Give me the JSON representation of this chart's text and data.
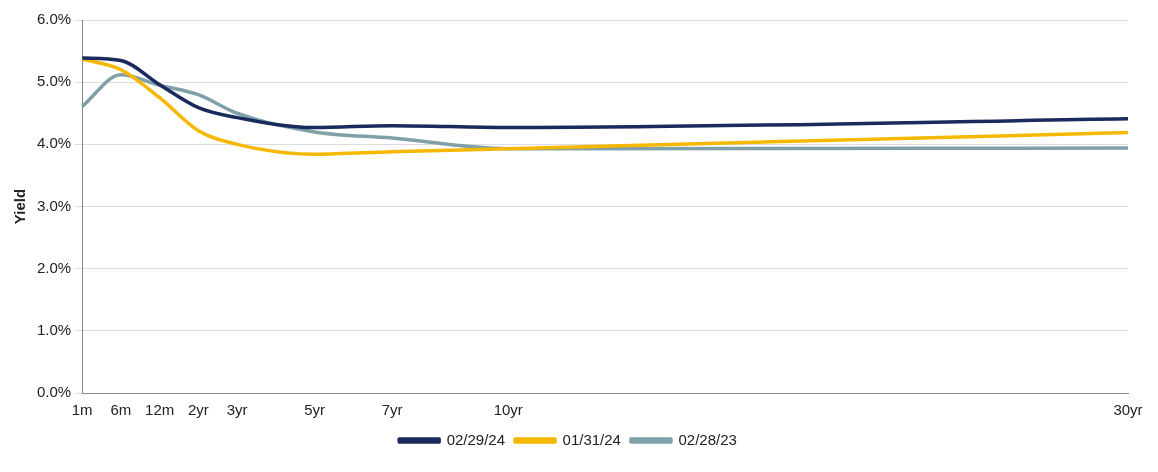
{
  "chart_data": {
    "type": "line",
    "ylabel": "Yield",
    "categories": [
      "1m",
      "6m",
      "12m",
      "2yr",
      "3yr",
      null,
      "5yr",
      null,
      "7yr",
      null,
      null,
      "10yr",
      null,
      null,
      null,
      null,
      null,
      null,
      null,
      null,
      null,
      null,
      null,
      null,
      null,
      null,
      null,
      "30yr"
    ],
    "ylim": [
      0,
      6
    ],
    "yticks": [
      {
        "value": 0,
        "label": "0.0%"
      },
      {
        "value": 1,
        "label": "1.0%"
      },
      {
        "value": 2,
        "label": "2.0%"
      },
      {
        "value": 3,
        "label": "3.0%"
      },
      {
        "value": 4,
        "label": "4.0%"
      },
      {
        "value": 5,
        "label": "5.0%"
      },
      {
        "value": 6,
        "label": "6.0%"
      }
    ],
    "grid": "y",
    "legend": "bottom",
    "marker": "none",
    "series": [
      {
        "name": "02/29/24",
        "color": "#1b2a5c",
        "values": [
          5.39,
          5.35,
          4.96,
          4.59,
          4.43,
          null,
          4.27,
          null,
          4.3,
          null,
          null,
          4.27,
          null,
          null,
          null,
          null,
          null,
          null,
          null,
          null,
          null,
          null,
          null,
          null,
          null,
          null,
          null,
          4.41
        ]
      },
      {
        "name": "01/31/24",
        "color": "#f5b800",
        "values": [
          5.37,
          5.2,
          4.75,
          4.22,
          4.0,
          null,
          3.84,
          null,
          3.88,
          null,
          null,
          3.93,
          null,
          null,
          null,
          null,
          null,
          null,
          null,
          null,
          null,
          null,
          null,
          null,
          null,
          null,
          null,
          4.19
        ]
      },
      {
        "name": "02/28/23",
        "color": "#7fa0a8",
        "values": [
          4.61,
          5.12,
          4.95,
          4.8,
          4.5,
          null,
          4.2,
          null,
          4.1,
          null,
          null,
          3.93,
          null,
          null,
          null,
          null,
          null,
          null,
          null,
          null,
          null,
          null,
          null,
          null,
          null,
          null,
          null,
          3.94
        ]
      }
    ]
  }
}
